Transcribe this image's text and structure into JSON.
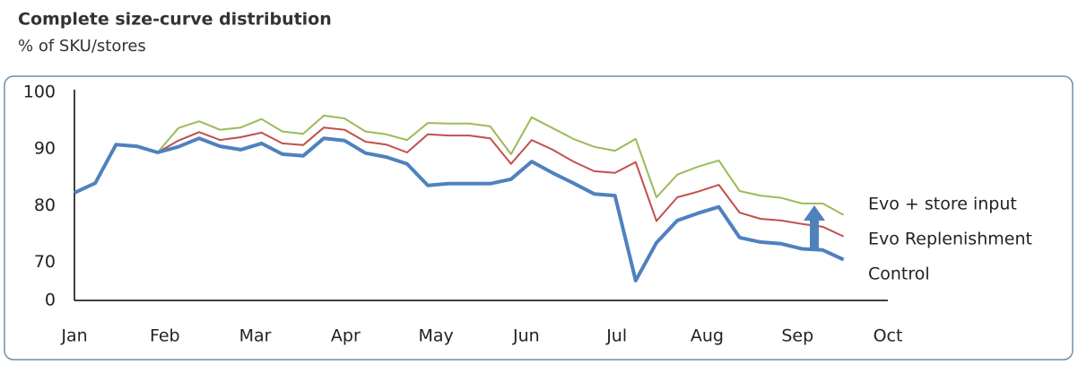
{
  "chart_data": {
    "type": "line",
    "title": "Complete size-curve distribution",
    "subtitle": "% of SKU/stores",
    "xlim": [
      0,
      9
    ],
    "xticks": [
      {
        "value": 0,
        "label": "Jan"
      },
      {
        "value": 1,
        "label": "Feb"
      },
      {
        "value": 2,
        "label": "Mar"
      },
      {
        "value": 3,
        "label": "Apr"
      },
      {
        "value": 4,
        "label": "May"
      },
      {
        "value": 5,
        "label": "Jun"
      },
      {
        "value": 6,
        "label": "Jul"
      },
      {
        "value": 7,
        "label": "Aug"
      },
      {
        "value": 8,
        "label": "Sep"
      },
      {
        "value": 9,
        "label": "Oct"
      }
    ],
    "ylim": [
      0,
      100
    ],
    "ybreak": [
      0,
      66
    ],
    "yticks": [
      0,
      70,
      80,
      90,
      100
    ],
    "grid": false,
    "x": [
      0,
      0.23,
      0.46,
      0.69,
      0.92,
      1.15,
      1.38,
      1.61,
      1.84,
      2.07,
      2.3,
      2.53,
      2.76,
      2.99,
      3.22,
      3.45,
      3.68,
      3.91,
      4.14,
      4.37,
      4.6,
      4.83,
      5.06,
      5.29,
      5.52,
      5.75,
      5.98,
      6.21,
      6.44,
      6.67,
      6.9,
      7.13,
      7.36,
      7.59,
      7.82,
      8.05,
      8.28,
      8.51
    ],
    "series": [
      {
        "name": "Evo + store input",
        "color": "#9bbb59",
        "width": 2,
        "values": [
          82.3,
          84.0,
          90.8,
          90.5,
          89.4,
          93.7,
          94.9,
          93.4,
          93.8,
          95.3,
          93.1,
          92.7,
          95.9,
          95.4,
          93.1,
          92.6,
          91.6,
          94.6,
          94.5,
          94.5,
          94.0,
          89.1,
          95.6,
          93.7,
          91.8,
          90.4,
          89.7,
          91.8,
          81.5,
          85.5,
          86.9,
          88.0,
          82.6,
          81.8,
          81.4,
          80.4,
          80.4,
          78.4
        ]
      },
      {
        "name": "Evo Replenishment",
        "color": "#c0504d",
        "width": 2,
        "values": [
          82.3,
          84.0,
          90.8,
          90.5,
          89.4,
          91.5,
          93.0,
          91.6,
          92.1,
          92.9,
          91.0,
          90.7,
          93.8,
          93.4,
          91.3,
          90.8,
          89.4,
          92.6,
          92.4,
          92.4,
          91.9,
          87.4,
          91.6,
          89.9,
          87.8,
          86.1,
          85.8,
          87.7,
          77.3,
          81.5,
          82.5,
          83.7,
          78.8,
          77.7,
          77.4,
          76.8,
          76.3,
          74.6
        ]
      },
      {
        "name": "Control",
        "color": "#4f81bd",
        "width": 4,
        "values": [
          82.3,
          84.0,
          90.8,
          90.5,
          89.4,
          90.4,
          91.9,
          90.5,
          89.9,
          91.0,
          89.1,
          88.8,
          91.9,
          91.5,
          89.3,
          88.6,
          87.4,
          83.6,
          83.9,
          83.9,
          83.9,
          84.7,
          87.8,
          85.8,
          84.0,
          82.1,
          81.8,
          66.8,
          73.5,
          77.4,
          78.7,
          79.8,
          74.4,
          73.6,
          73.3,
          72.4,
          72.2,
          70.5
        ]
      }
    ]
  }
}
